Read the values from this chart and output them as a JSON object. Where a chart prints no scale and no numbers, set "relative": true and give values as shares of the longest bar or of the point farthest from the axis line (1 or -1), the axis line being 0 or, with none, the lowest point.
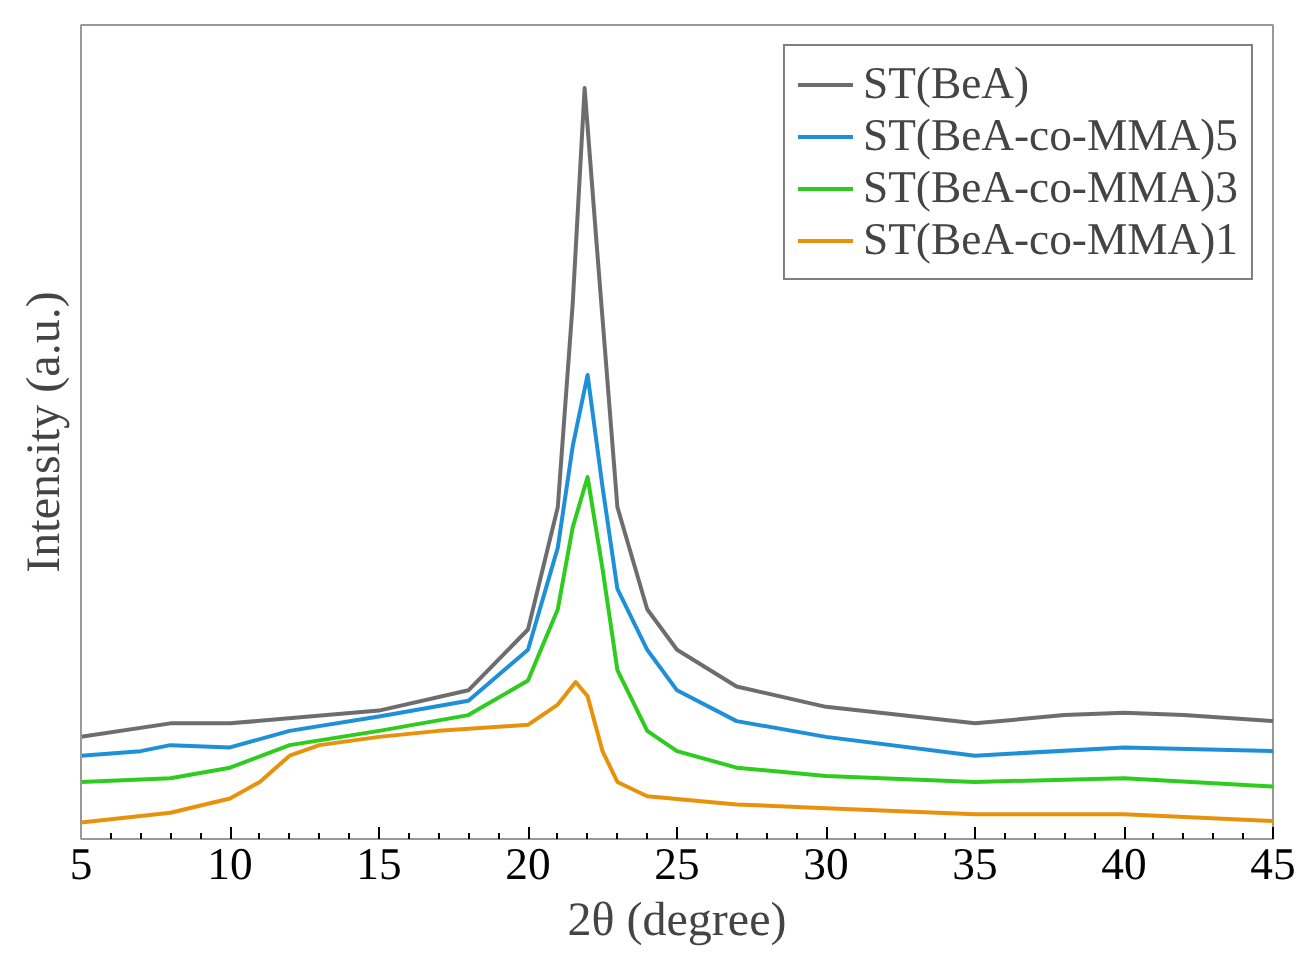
{
  "chart_data": {
    "type": "line",
    "xlabel": "2θ (degree)",
    "ylabel": "Intensity (a.u.)",
    "relative": true,
    "xlim": [
      5,
      45
    ],
    "xticks": [
      5,
      10,
      15,
      20,
      25,
      30,
      35,
      40,
      45
    ],
    "grid": false,
    "legend": "top right",
    "marker": "none",
    "line_style": "solid",
    "tick_labels": "x",
    "series": [
      {
        "name": "ST(BeA)",
        "color": "#6d6d6d",
        "x": [
          5,
          8,
          10,
          15,
          18,
          20,
          21,
          21.5,
          21.9,
          22.3,
          23,
          24,
          25,
          27,
          30,
          35,
          38,
          40,
          42,
          45
        ],
        "values": [
          0.136,
          0.154,
          0.154,
          0.171,
          0.198,
          0.279,
          0.442,
          0.713,
          1.0,
          0.794,
          0.442,
          0.306,
          0.252,
          0.203,
          0.176,
          0.154,
          0.165,
          0.168,
          0.165,
          0.157
        ]
      },
      {
        "name": "ST(BeA-co-MMA)5",
        "color": "#1e90d8",
        "x": [
          5,
          7,
          8,
          10,
          12,
          15,
          18,
          20,
          21,
          21.5,
          22,
          22.5,
          23,
          24,
          25,
          27,
          30,
          35,
          40,
          45
        ],
        "values": [
          0.111,
          0.117,
          0.125,
          0.122,
          0.144,
          0.163,
          0.184,
          0.252,
          0.388,
          0.523,
          0.618,
          0.469,
          0.333,
          0.252,
          0.198,
          0.157,
          0.136,
          0.111,
          0.122,
          0.117
        ]
      },
      {
        "name": "ST(BeA-co-MMA)3",
        "color": "#2ecc1e",
        "x": [
          5,
          8,
          10,
          12,
          15,
          18,
          20,
          21,
          21.5,
          22,
          22.5,
          23,
          24,
          25,
          27,
          30,
          35,
          40,
          45
        ],
        "values": [
          0.076,
          0.081,
          0.095,
          0.125,
          0.144,
          0.165,
          0.211,
          0.306,
          0.415,
          0.482,
          0.36,
          0.225,
          0.144,
          0.117,
          0.095,
          0.084,
          0.076,
          0.081,
          0.07
        ]
      },
      {
        "name": "ST(BeA-co-MMA)1",
        "color": "#e8920c",
        "x": [
          5,
          8,
          10,
          11,
          12,
          13,
          15,
          17,
          20,
          21,
          21.6,
          22,
          22.5,
          23,
          24,
          27,
          30,
          35,
          40,
          45
        ],
        "values": [
          0.022,
          0.035,
          0.054,
          0.076,
          0.111,
          0.125,
          0.136,
          0.144,
          0.152,
          0.179,
          0.209,
          0.19,
          0.117,
          0.076,
          0.057,
          0.046,
          0.041,
          0.033,
          0.033,
          0.024
        ]
      }
    ]
  }
}
